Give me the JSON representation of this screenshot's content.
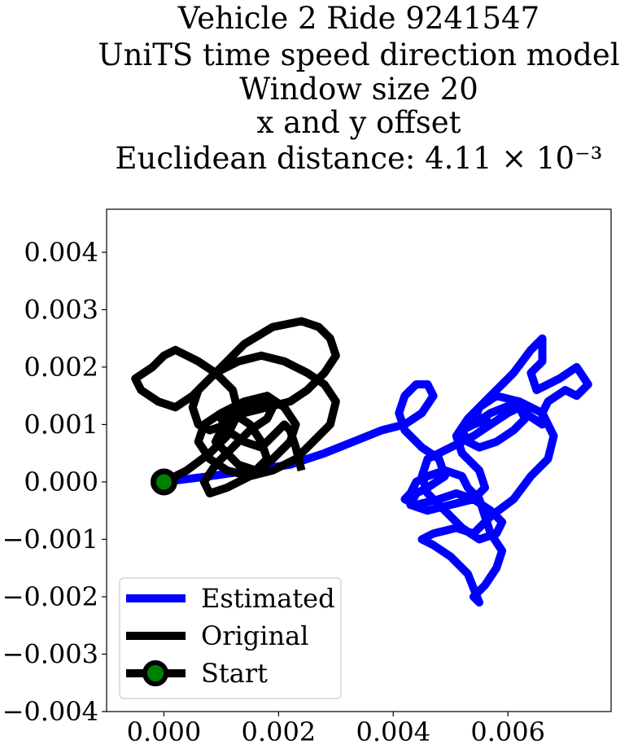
{
  "chart_data": {
    "type": "line",
    "title_lines": [
      "Vehicle 2 Ride 9241547",
      "UniTS time speed direction model",
      "Window size 20",
      "x and y offset",
      "Euclidean distance: 4.11 × 10⁻³"
    ],
    "xlabel": "",
    "ylabel": "",
    "xlim": [
      -0.001,
      0.0078
    ],
    "ylim": [
      -0.004,
      0.00475
    ],
    "xticks": [
      0.0,
      0.002,
      0.004,
      0.006
    ],
    "xtick_labels": [
      "0.000",
      "0.002",
      "0.004",
      "0.006"
    ],
    "yticks": [
      -0.004,
      -0.003,
      -0.002,
      -0.001,
      0.0,
      0.001,
      0.002,
      0.003,
      0.004
    ],
    "ytick_labels": [
      "−0.004",
      "−0.003",
      "−0.002",
      "−0.001",
      "0.000",
      "0.001",
      "0.002",
      "0.003",
      "0.004"
    ],
    "grid": false,
    "legend_position": "lower-left",
    "series": [
      {
        "name": "Estimated",
        "color": "#0000ff",
        "x": [
          0.0,
          0.0008,
          0.0015,
          0.0022,
          0.0028,
          0.0033,
          0.0038,
          0.0042,
          0.0045,
          0.0047,
          0.0046,
          0.0044,
          0.0042,
          0.0041,
          0.0042,
          0.0045,
          0.0048,
          0.0049,
          0.0046,
          0.0044,
          0.0043,
          0.0046,
          0.005,
          0.0054,
          0.0056,
          0.0055,
          0.0052,
          0.0051,
          0.0053,
          0.0057,
          0.0061,
          0.0064,
          0.0066,
          0.0066,
          0.0064,
          0.0065,
          0.0069,
          0.0072,
          0.0074,
          0.0072,
          0.007,
          0.0067,
          0.0066,
          0.0066,
          0.0063,
          0.0062,
          0.0058,
          0.0055,
          0.0054,
          0.0057,
          0.0062,
          0.0066,
          0.0068,
          0.0067,
          0.0064,
          0.0061,
          0.0057,
          0.0054,
          0.0051,
          0.0047,
          0.0045,
          0.0047,
          0.005,
          0.0053,
          0.0055,
          0.0054,
          0.0056,
          0.0058,
          0.0059,
          0.0057,
          0.0056,
          0.0055,
          0.0053,
          0.0052,
          0.0049,
          0.0046,
          0.0044,
          0.0043,
          0.0042,
          0.0044,
          0.0048,
          0.0051,
          0.0054,
          0.0057,
          0.0059,
          0.0058,
          0.0055,
          0.0052,
          0.0049,
          0.0046,
          0.0045,
          0.0046,
          0.005,
          0.0054,
          0.0057,
          0.006,
          0.0062,
          0.0063,
          0.0061,
          0.0058,
          0.0055,
          0.0053,
          0.0052,
          0.0054,
          0.0057
        ],
        "y": [
          0.0,
          0.0001,
          0.0002,
          0.0003,
          0.0005,
          0.0007,
          0.0009,
          0.001,
          0.0012,
          0.0015,
          0.0017,
          0.0017,
          0.0015,
          0.0012,
          0.0009,
          0.0006,
          0.0004,
          0.0001,
          -0.0001,
          -0.0002,
          -0.0004,
          -0.0005,
          -0.0004,
          -0.0003,
          -0.0001,
          0.0002,
          0.0005,
          0.0008,
          0.0011,
          0.0015,
          0.0019,
          0.0023,
          0.0025,
          0.0021,
          0.0019,
          0.0016,
          0.0018,
          0.002,
          0.0017,
          0.0015,
          0.0016,
          0.0014,
          0.0012,
          0.001,
          0.0012,
          0.0014,
          0.0015,
          0.0013,
          0.001,
          0.0012,
          0.0014,
          0.0012,
          0.0008,
          0.0004,
          0.0001,
          -0.0003,
          -0.0006,
          -0.0009,
          -0.0008,
          -0.0009,
          -0.001,
          -0.0011,
          -0.0013,
          -0.0016,
          -0.0021,
          -0.002,
          -0.0018,
          -0.0015,
          -0.0012,
          -0.0009,
          -0.0006,
          -0.0003,
          -0.0001,
          0.0001,
          0.0002,
          0.0001,
          0.0,
          -0.0002,
          -0.0003,
          -0.0004,
          -0.0003,
          -0.0002,
          -0.0003,
          -0.0005,
          -0.0007,
          -0.0009,
          -0.001,
          -0.0008,
          -0.0005,
          -0.0002,
          0.0001,
          0.0004,
          0.0006,
          0.0008,
          0.001,
          0.0012,
          0.0013,
          0.0011,
          0.0009,
          0.0007,
          0.0006,
          0.0007,
          0.0009,
          0.001,
          0.0011
        ]
      },
      {
        "name": "Original",
        "color": "#000000",
        "x": [
          0.0,
          0.0004,
          0.0008,
          0.0011,
          0.0013,
          0.0012,
          0.0009,
          0.0006,
          0.0004,
          0.0002,
          0.0,
          -0.0002,
          -0.0005,
          -0.0004,
          -0.0001,
          0.0002,
          0.0005,
          0.0009,
          0.0014,
          0.0019,
          0.0024,
          0.0027,
          0.0029,
          0.003,
          0.0028,
          0.0025,
          0.0022,
          0.0018,
          0.0014,
          0.0011,
          0.0008,
          0.0006,
          0.0005,
          0.0006,
          0.0009,
          0.0013,
          0.0017,
          0.0021,
          0.0025,
          0.0028,
          0.003,
          0.0029,
          0.0026,
          0.0023,
          0.0019,
          0.0015,
          0.0011,
          0.0008,
          0.0006,
          0.0007,
          0.001,
          0.0014,
          0.0018,
          0.0021,
          0.0023,
          0.0022,
          0.0019,
          0.0015,
          0.0011,
          0.0008,
          0.0007,
          0.0009,
          0.0012,
          0.0015,
          0.0018,
          0.0019,
          0.0017,
          0.0014,
          0.0012,
          0.001,
          0.0009,
          0.0011,
          0.0013,
          0.0016,
          0.0018,
          0.0017,
          0.0015,
          0.0012,
          0.001,
          0.0011,
          0.0014,
          0.0017,
          0.0019,
          0.0021,
          0.0022,
          0.0023,
          0.0024
        ],
        "y": [
          0.0,
          0.0002,
          0.0005,
          0.0008,
          0.0012,
          0.0016,
          0.0019,
          0.0021,
          0.0022,
          0.0023,
          0.0022,
          0.002,
          0.0018,
          0.0016,
          0.0014,
          0.0013,
          0.0015,
          0.0019,
          0.0024,
          0.0027,
          0.0028,
          0.0027,
          0.0025,
          0.0022,
          0.0019,
          0.0016,
          0.0014,
          0.0013,
          0.0012,
          0.001,
          0.0009,
          0.001,
          0.0013,
          0.0016,
          0.0019,
          0.0021,
          0.0022,
          0.0021,
          0.0019,
          0.0017,
          0.0014,
          0.001,
          0.0007,
          0.0004,
          0.0002,
          0.0001,
          0.0002,
          0.0004,
          0.0007,
          0.001,
          0.0012,
          0.0014,
          0.0015,
          0.0013,
          0.001,
          0.0007,
          0.0004,
          0.0001,
          -0.0001,
          -0.0002,
          0.0,
          0.0003,
          0.0006,
          0.0009,
          0.0011,
          0.0013,
          0.0014,
          0.0013,
          0.0011,
          0.0009,
          0.0007,
          0.0005,
          0.0003,
          0.0002,
          0.0004,
          0.0007,
          0.001,
          0.0012,
          0.0011,
          0.0009,
          0.0007,
          0.0006,
          0.0008,
          0.001,
          0.0009,
          0.0006,
          0.0002
        ]
      },
      {
        "name": "Start",
        "color": "#000000",
        "marker_color": "#008000",
        "x": [
          0.0
        ],
        "y": [
          0.0
        ]
      }
    ]
  }
}
